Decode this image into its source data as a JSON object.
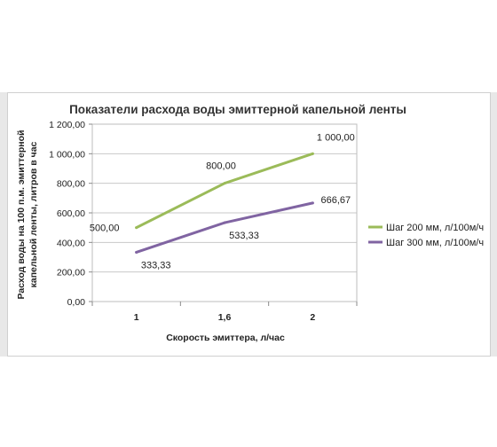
{
  "chart_data": {
    "type": "line",
    "title": "Показатели расхода воды эмиттерной капельной ленты",
    "xlabel": "Скорость эмиттера, л/час",
    "ylabel_lines": [
      "Расход воды на 100 п.м. эмиттерной",
      "капельной ленты, литров в час"
    ],
    "categories": [
      "1",
      "1,6",
      "2"
    ],
    "ylim": [
      0,
      1200
    ],
    "yticks": [
      0,
      200,
      400,
      600,
      800,
      1000,
      1200
    ],
    "ytick_labels": [
      "0,00",
      "200,00",
      "400,00",
      "600,00",
      "800,00",
      "1 000,00",
      "1 200,00"
    ],
    "grid": true,
    "legend_position": "right",
    "series": [
      {
        "name": "Шаг 200 мм, л/100м/ч",
        "values": [
          500,
          800,
          1000
        ],
        "labels": [
          "500,00",
          "800,00",
          "1 000,00"
        ],
        "color": "#9bbb59"
      },
      {
        "name": "Шаг 300 мм, л/100м/ч",
        "values": [
          333.33,
          533.33,
          666.67
        ],
        "labels": [
          "333,33",
          "533,33",
          "666,67"
        ],
        "color": "#8064a2"
      }
    ]
  }
}
